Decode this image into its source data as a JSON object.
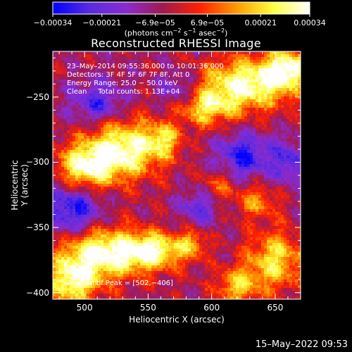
{
  "chart_data": {
    "type": "heatmap",
    "title": "Reconstructed RHESSI Image",
    "xlabel": "Heliocentric X (arcsec)",
    "ylabel": "Heliocentric Y (arcsec)",
    "xlim": [
      475,
      670
    ],
    "ylim": [
      -405,
      -215
    ],
    "x_ticks": [
      500,
      550,
      600,
      650
    ],
    "y_ticks": [
      -250,
      -300,
      -350,
      -400
    ],
    "x_tick_labels": [
      "500",
      "550",
      "600",
      "650"
    ],
    "y_tick_labels": [
      "−250",
      "−300",
      "−350",
      "−400"
    ],
    "colorbar": {
      "range": [
        -0.00034,
        0.00034
      ],
      "tick_values": [
        -0.00034,
        -0.00021,
        -6.9e-05,
        6.9e-05,
        0.00021,
        0.00034
      ],
      "tick_labels": [
        "−0.00034",
        "−0.00021",
        "−6.9e−05",
        "6.9e−05",
        "0.00021",
        "0.00034"
      ],
      "units_main": "(photons cm",
      "units_sup1": "−2",
      "units_mid1": " s",
      "units_sup2": "−1",
      "units_mid2": " asec",
      "units_sup3": "−2",
      "units_end": ")",
      "colors": [
        "#0000ff",
        "#5a2be0",
        "#8a2bd0",
        "#a01a50",
        "#ff2000",
        "#ff9a00",
        "#ffff40",
        "#ffffff"
      ]
    },
    "blobs": [
      {
        "x": 628,
        "y": -240,
        "sx": 26,
        "sy": 14,
        "amp": 1.0
      },
      {
        "x": 660,
        "y": -228,
        "sx": 12,
        "sy": 10,
        "amp": 0.9
      },
      {
        "x": 595,
        "y": -258,
        "sx": 16,
        "sy": 10,
        "amp": 0.7
      },
      {
        "x": 530,
        "y": -290,
        "sx": 22,
        "sy": 16,
        "amp": 1.0
      },
      {
        "x": 500,
        "y": -305,
        "sx": 16,
        "sy": 12,
        "amp": 0.85
      },
      {
        "x": 562,
        "y": -283,
        "sx": 10,
        "sy": 9,
        "amp": 0.55
      },
      {
        "x": 515,
        "y": -370,
        "sx": 22,
        "sy": 14,
        "amp": 1.0
      },
      {
        "x": 555,
        "y": -368,
        "sx": 18,
        "sy": 10,
        "amp": 0.9
      },
      {
        "x": 490,
        "y": -392,
        "sx": 14,
        "sy": 14,
        "amp": 0.85
      },
      {
        "x": 650,
        "y": -375,
        "sx": 16,
        "sy": 16,
        "amp": 0.75
      },
      {
        "x": 620,
        "y": -395,
        "sx": 12,
        "sy": 10,
        "amp": 0.65
      },
      {
        "x": 635,
        "y": -330,
        "sx": 12,
        "sy": 9,
        "amp": 0.5
      },
      {
        "x": 605,
        "y": -318,
        "sx": 9,
        "sy": 8,
        "amp": 0.4
      },
      {
        "x": 585,
        "y": -362,
        "sx": 8,
        "sy": 8,
        "amp": 0.45
      },
      {
        "x": 490,
        "y": -335,
        "sx": 16,
        "sy": 14,
        "amp": -0.7
      },
      {
        "x": 510,
        "y": -255,
        "sx": 14,
        "sy": 12,
        "amp": -0.55
      },
      {
        "x": 625,
        "y": -295,
        "sx": 14,
        "sy": 12,
        "amp": -0.65
      },
      {
        "x": 575,
        "y": -245,
        "sx": 12,
        "sy": 10,
        "amp": -0.45
      },
      {
        "x": 590,
        "y": -335,
        "sx": 10,
        "sy": 10,
        "amp": -0.45
      },
      {
        "x": 660,
        "y": -300,
        "sx": 10,
        "sy": 12,
        "amp": -0.5
      }
    ],
    "annotation": {
      "line1": "23–May–2014 09:55:36.000 to 10:01:36.000",
      "line2": "Detectors: 3F 4F 5F 6F 7F 8F, Att 0",
      "line3": "Energy Range: 25.0 − 50.0 keV",
      "line4": "Clean     Total counts: 1.13E+04",
      "peak": "Position of Peak = [502,−406]"
    }
  },
  "footer": {
    "timestamp": "15–May–2022 09:53"
  }
}
